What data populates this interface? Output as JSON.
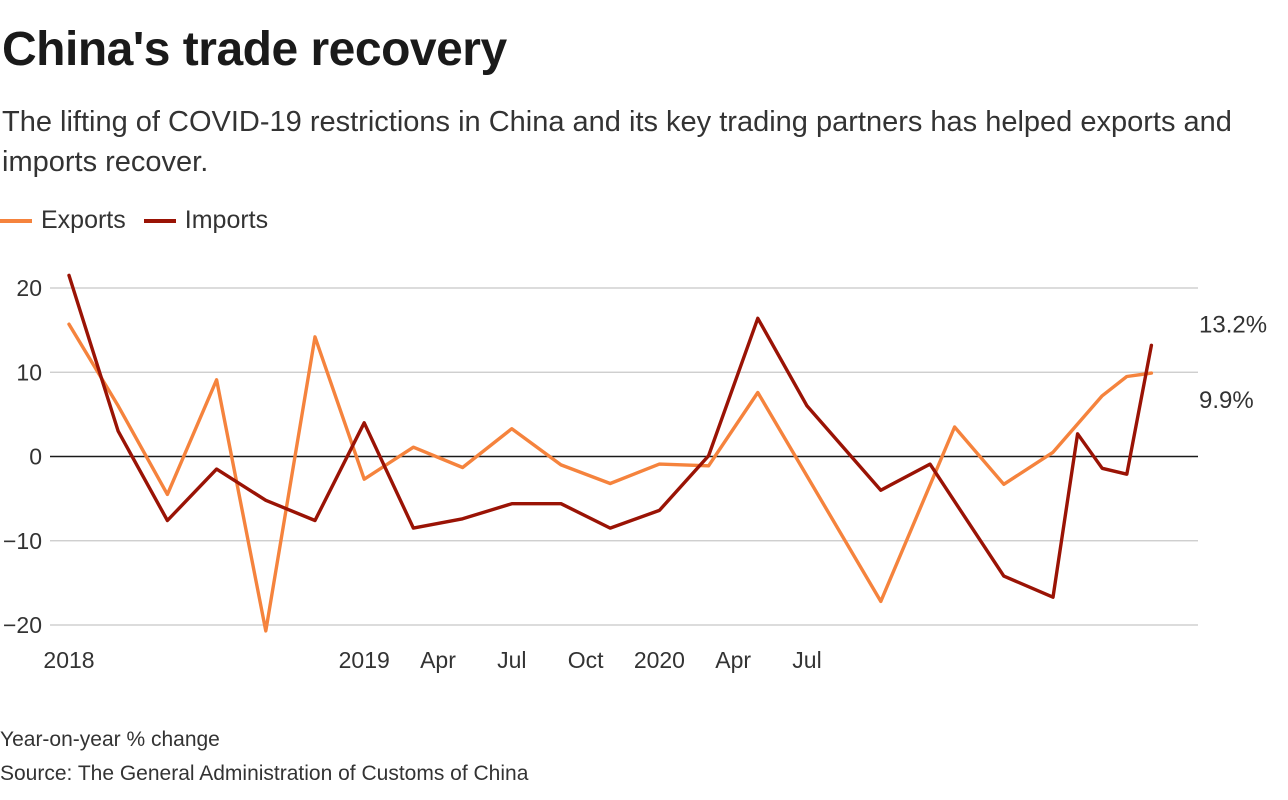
{
  "header": {
    "title": "China's trade recovery",
    "subtitle": "The lifting of COVID-19 restrictions in China and its key trading partners has helped exports and imports recover."
  },
  "footer": {
    "unit_note": "Year-on-year % change",
    "source": "Source: The General Administration of Customs of China"
  },
  "colors": {
    "exports": "#f5833d",
    "imports": "#9a1305",
    "grid": "#c8c8c8",
    "zero": "#1a1a1a",
    "text": "#333333"
  },
  "chart_data": {
    "type": "line",
    "title": "China's trade recovery",
    "xlabel": "",
    "ylabel": "Year-on-year % change",
    "ylim": [
      -20,
      20
    ],
    "yticks": [
      20,
      10,
      0,
      -10,
      -20
    ],
    "grid": true,
    "legend_position": "top-left",
    "x": [
      "2018-01",
      "2018-02",
      "2018-03",
      "2018-04",
      "2018-05",
      "2018-06",
      "2018-07",
      "2018-08",
      "2018-09",
      "2018-10",
      "2018-11",
      "2018-12",
      "2019-01",
      "2019-02",
      "2019-03",
      "2019-04",
      "2019-05",
      "2019-06",
      "2019-07",
      "2019-08",
      "2019-09",
      "2019-10",
      "2019-11",
      "2019-12",
      "2020-01",
      "2020-02",
      "2020-03",
      "2020-04",
      "2020-05",
      "2020-06",
      "2020-07",
      "2020-08",
      "2020-09",
      "2020-10",
      "2020-11",
      "2020-12",
      "2021-01",
      "2021-02",
      "2021-03",
      "2021-04",
      "2021-05",
      "2021-06",
      "2021-07",
      "2021-08",
      "2021-09"
    ],
    "xticks": [
      {
        "x": "2018-01",
        "label": "2018"
      },
      {
        "x": "2019-01",
        "label": "2019"
      },
      {
        "x": "2019-04",
        "label": "Apr"
      },
      {
        "x": "2019-07",
        "label": "Jul"
      },
      {
        "x": "2019-10",
        "label": "Oct"
      },
      {
        "x": "2020-01",
        "label": "2020"
      },
      {
        "x": "2020-04",
        "label": "Apr"
      },
      {
        "x": "2020-07",
        "label": "Jul"
      }
    ],
    "series": [
      {
        "name": "Exports",
        "color": "#f5833d",
        "points": [
          {
            "x": "2018-01",
            "y": 15.7
          },
          {
            "x": "2018-03",
            "y": 6.0
          },
          {
            "x": "2018-05",
            "y": -4.5
          },
          {
            "x": "2018-07",
            "y": 9.1
          },
          {
            "x": "2018-09",
            "y": -20.7
          },
          {
            "x": "2018-11",
            "y": 14.2
          },
          {
            "x": "2019-01",
            "y": -2.7
          },
          {
            "x": "2019-03",
            "y": 1.1
          },
          {
            "x": "2019-05",
            "y": -1.3
          },
          {
            "x": "2019-07",
            "y": 3.3
          },
          {
            "x": "2019-09",
            "y": -1.0
          },
          {
            "x": "2019-11",
            "y": -3.2
          },
          {
            "x": "2020-01",
            "y": -0.9
          },
          {
            "x": "2020-03",
            "y": -1.1
          },
          {
            "x": "2020-05",
            "y": 7.6
          },
          {
            "x": "2020-10",
            "y": -17.2
          },
          {
            "x": "2021-01",
            "y": 3.5
          },
          {
            "x": "2021-03",
            "y": -3.3
          },
          {
            "x": "2021-05",
            "y": 0.5
          },
          {
            "x": "2021-07",
            "y": 7.2
          },
          {
            "x": "2021-08",
            "y": 9.5
          },
          {
            "x": "2021-09",
            "y": 9.9
          }
        ],
        "end_label": "9.9%"
      },
      {
        "name": "Imports",
        "color": "#9a1305",
        "points": [
          {
            "x": "2018-01",
            "y": 21.5
          },
          {
            "x": "2018-03",
            "y": 3.0
          },
          {
            "x": "2018-05",
            "y": -7.6
          },
          {
            "x": "2018-07",
            "y": -1.5
          },
          {
            "x": "2018-09",
            "y": -5.2
          },
          {
            "x": "2018-11",
            "y": -7.6
          },
          {
            "x": "2019-01",
            "y": 4.0
          },
          {
            "x": "2019-03",
            "y": -8.5
          },
          {
            "x": "2019-05",
            "y": -7.4
          },
          {
            "x": "2019-07",
            "y": -5.6
          },
          {
            "x": "2019-09",
            "y": -5.6
          },
          {
            "x": "2019-11",
            "y": -8.5
          },
          {
            "x": "2020-01",
            "y": -6.4
          },
          {
            "x": "2020-03",
            "y": 0.1
          },
          {
            "x": "2020-05",
            "y": 16.4
          },
          {
            "x": "2020-07",
            "y": 6.0
          },
          {
            "x": "2020-10",
            "y": -4.0
          },
          {
            "x": "2020-12",
            "y": -0.9
          },
          {
            "x": "2021-03",
            "y": -14.2
          },
          {
            "x": "2021-05",
            "y": -16.7
          },
          {
            "x": "2021-06",
            "y": 2.7
          },
          {
            "x": "2021-07",
            "y": -1.4
          },
          {
            "x": "2021-08",
            "y": -2.1
          },
          {
            "x": "2021-09",
            "y": 13.2
          }
        ],
        "end_label": "13.2%"
      }
    ]
  }
}
